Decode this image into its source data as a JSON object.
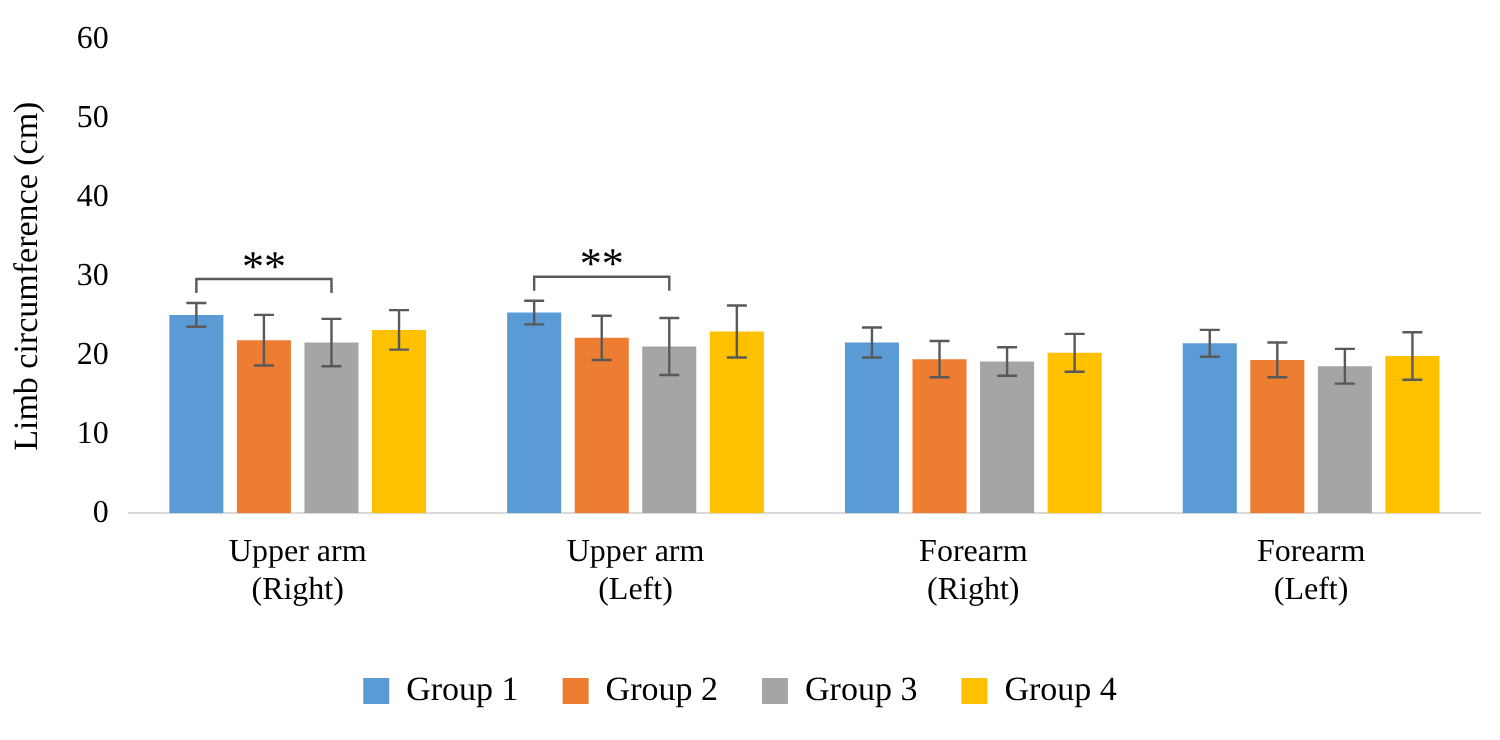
{
  "chart_data": {
    "type": "bar",
    "ylabel": "Limb circumference (cm)",
    "categories": [
      "Upper arm\n(Right)",
      "Upper arm\n(Left)",
      "Forearm\n(Right)",
      "Forearm\n(Left)"
    ],
    "series": [
      {
        "name": "Group 1",
        "color": "#5b9bd5",
        "values": [
          25.1,
          25.4,
          21.6,
          21.5
        ],
        "errors": [
          1.5,
          1.5,
          1.9,
          1.7
        ]
      },
      {
        "name": "Group 2",
        "color": "#ed7d31",
        "values": [
          21.9,
          22.2,
          19.5,
          19.4
        ],
        "errors": [
          3.2,
          2.8,
          2.3,
          2.2
        ]
      },
      {
        "name": "Group 3",
        "color": "#a5a5a5",
        "values": [
          21.6,
          21.1,
          19.2,
          18.6
        ],
        "errors": [
          3.0,
          3.6,
          1.8,
          2.2
        ]
      },
      {
        "name": "Group 4",
        "color": "#ffc000",
        "values": [
          23.2,
          23.0,
          20.3,
          19.9
        ],
        "errors": [
          2.5,
          3.3,
          2.4,
          3.0
        ]
      }
    ],
    "ylim": [
      0,
      60
    ],
    "yticks": [
      0,
      10,
      20,
      30,
      40,
      50,
      60
    ],
    "grid": false,
    "legend": "bottom",
    "annotations": [
      "**",
      "**"
    ]
  }
}
